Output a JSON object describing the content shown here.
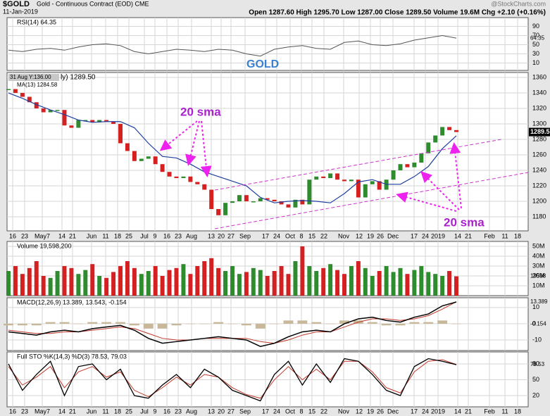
{
  "chart_data": {
    "type": "candlestick",
    "symbol": "$GOLD",
    "title": "Gold - Continuous Contract (EOD) CME",
    "date": "11-Jan-2019",
    "quote": "Open 1287.60  High 1295.70  Low 1287.00  Close 1289.50  Volume 19.6M  Chg +2.10 (+0.16%)",
    "watermark": "@StockCharts.com",
    "watermark_label": "GOLD",
    "tooltip": "31 Aug Y:136.00",
    "price_legend": "ly) 1289.50",
    "ma_legend": "MA(13) 1284.58",
    "last_price_label": "1289.5",
    "annotations": [
      "20 sma",
      "20 sma"
    ],
    "x_labels": [
      "16",
      "23",
      "May7",
      "14",
      "21",
      "Jun",
      "11",
      "18",
      "25",
      "Jul",
      "9",
      "16",
      "23",
      "Aug",
      "13",
      "20",
      "27",
      "Sep",
      "17",
      "24",
      "Oct",
      "8",
      "15",
      "22",
      "Nov",
      "12",
      "19",
      "26",
      "Dec",
      "17",
      "24",
      "2019",
      "14",
      "21",
      "Feb",
      "11",
      "18"
    ],
    "up_color": "#2e8b2e",
    "down_color": "#d42020",
    "grid": true,
    "close": [
      1345,
      1340,
      1335,
      1328,
      1320,
      1315,
      1318,
      1318,
      1298,
      1295,
      1305,
      1305,
      1302,
      1305,
      1303,
      1300,
      1275,
      1265,
      1252,
      1255,
      1258,
      1248,
      1238,
      1232,
      1230,
      1232,
      1225,
      1222,
      1215,
      1190,
      1182,
      1198,
      1200,
      1208,
      1200,
      1200,
      1204,
      1202,
      1200,
      1196,
      1192,
      1202,
      1196,
      1228,
      1232,
      1230,
      1236,
      1228,
      1226,
      1228,
      1205,
      1222,
      1226,
      1215,
      1228,
      1240,
      1248,
      1244,
      1250,
      1262,
      1276,
      1285,
      1296,
      1292,
      1289.5
    ],
    "ma": {
      "name": "MA(13)",
      "color": "#1f3f9f",
      "values": [
        1340,
        1333,
        1325,
        1318,
        1312,
        1305,
        1302,
        1303,
        1303,
        1295,
        1275,
        1258,
        1256,
        1248,
        1238,
        1232,
        1226,
        1220,
        1205,
        1198,
        1200,
        1201,
        1200,
        1198,
        1210,
        1225,
        1228,
        1222,
        1222,
        1232,
        1245,
        1268,
        1284.58
      ]
    },
    "ylim": [
      1161.8,
      1366.4
    ],
    "yticks": [
      1180,
      1200,
      1220,
      1240,
      1260,
      1280,
      1300,
      1320,
      1340,
      1360
    ],
    "rsi": {
      "legend": "RSI(14) 64.35",
      "color": "#555555",
      "values": [
        38,
        35,
        40,
        42,
        38,
        45,
        50,
        52,
        48,
        35,
        30,
        35,
        40,
        38,
        35,
        40,
        38,
        30,
        25,
        40,
        45,
        48,
        42,
        40,
        55,
        58,
        50,
        48,
        52,
        60,
        65,
        70,
        64.35
      ],
      "ylim": [
        0,
        100
      ],
      "yticks": [
        10,
        30,
        50,
        70,
        90
      ],
      "last_label": "64.35"
    },
    "volume": {
      "legend": "Volume 19,598,200",
      "values": [
        25,
        30,
        22,
        28,
        35,
        20,
        18,
        25,
        30,
        28,
        22,
        26,
        32,
        20,
        18,
        24,
        30,
        35,
        28,
        22,
        25,
        30,
        20,
        26,
        28,
        32,
        22,
        30,
        35,
        38,
        28,
        25,
        30,
        22,
        24,
        28,
        26,
        20,
        25,
        30,
        22,
        35,
        50,
        30,
        25,
        28,
        32,
        26,
        22,
        30,
        35,
        28,
        20,
        25,
        30,
        24,
        28,
        22,
        26,
        30,
        24,
        22,
        20,
        25,
        19.598
      ],
      "ylim": [
        0,
        55
      ],
      "yticks": [
        {
          "value": 10,
          "label": "10M"
        },
        {
          "value": 20,
          "label": "20M"
        },
        {
          "value": 30,
          "label": "30M"
        },
        {
          "value": 40,
          "label": "40M"
        },
        {
          "value": 50,
          "label": "50M"
        }
      ],
      "last_label": "19598"
    },
    "macd": {
      "legend": "MACD(12,26,9) 13.389, 13.543, -0.154",
      "macd_color": "#000000",
      "signal_color": "#c0392b",
      "hist_color": "#c8b89a",
      "macd": [
        -5,
        -6,
        -7,
        -5,
        -4,
        -5,
        -3,
        -2,
        -1,
        -4,
        -9,
        -12,
        -11,
        -10,
        -9,
        -8,
        -9,
        -10,
        -14,
        -12,
        -8,
        -5,
        -4,
        -5,
        0,
        3,
        4,
        2,
        1,
        4,
        6,
        11,
        13.389
      ],
      "signal": [
        -4,
        -5,
        -6,
        -6,
        -5,
        -5,
        -4,
        -3,
        -2,
        -3,
        -6,
        -9,
        -10,
        -10,
        -9,
        -9,
        -9,
        -9,
        -11,
        -12,
        -10,
        -7,
        -5,
        -5,
        -2,
        1,
        3,
        3,
        2,
        3,
        5,
        9,
        13.543
      ],
      "hist": [
        -1,
        -1,
        -1,
        1,
        1,
        0,
        1,
        1,
        1,
        -1,
        -3,
        -3,
        -1,
        0,
        0,
        1,
        0,
        -1,
        -3,
        0,
        2,
        2,
        1,
        0,
        2,
        2,
        1,
        -1,
        -1,
        1,
        1,
        2,
        -0.154
      ],
      "ylim": [
        -16.5,
        16
      ],
      "yticks": [
        -10,
        0,
        10
      ],
      "last_labels": [
        "13.389",
        "-0.154"
      ]
    },
    "sto": {
      "legend": "Full STO %K(14,3) %D(3) 78.53, 79.03",
      "k_color": "#000000",
      "d_color": "#c0392b",
      "k": [
        80,
        30,
        60,
        85,
        20,
        75,
        80,
        50,
        70,
        20,
        15,
        40,
        60,
        35,
        70,
        55,
        30,
        20,
        10,
        60,
        85,
        40,
        80,
        45,
        90,
        85,
        60,
        30,
        20,
        75,
        90,
        85,
        78.53
      ],
      "d": [
        75,
        40,
        55,
        75,
        35,
        65,
        75,
        55,
        65,
        30,
        18,
        35,
        55,
        40,
        60,
        55,
        35,
        22,
        15,
        50,
        75,
        50,
        70,
        50,
        85,
        85,
        65,
        35,
        25,
        65,
        85,
        88,
        79.03
      ],
      "ylim": [
        -1.3,
        102.7
      ],
      "yticks": [
        20,
        50,
        80
      ],
      "last_label": "78.53"
    }
  }
}
